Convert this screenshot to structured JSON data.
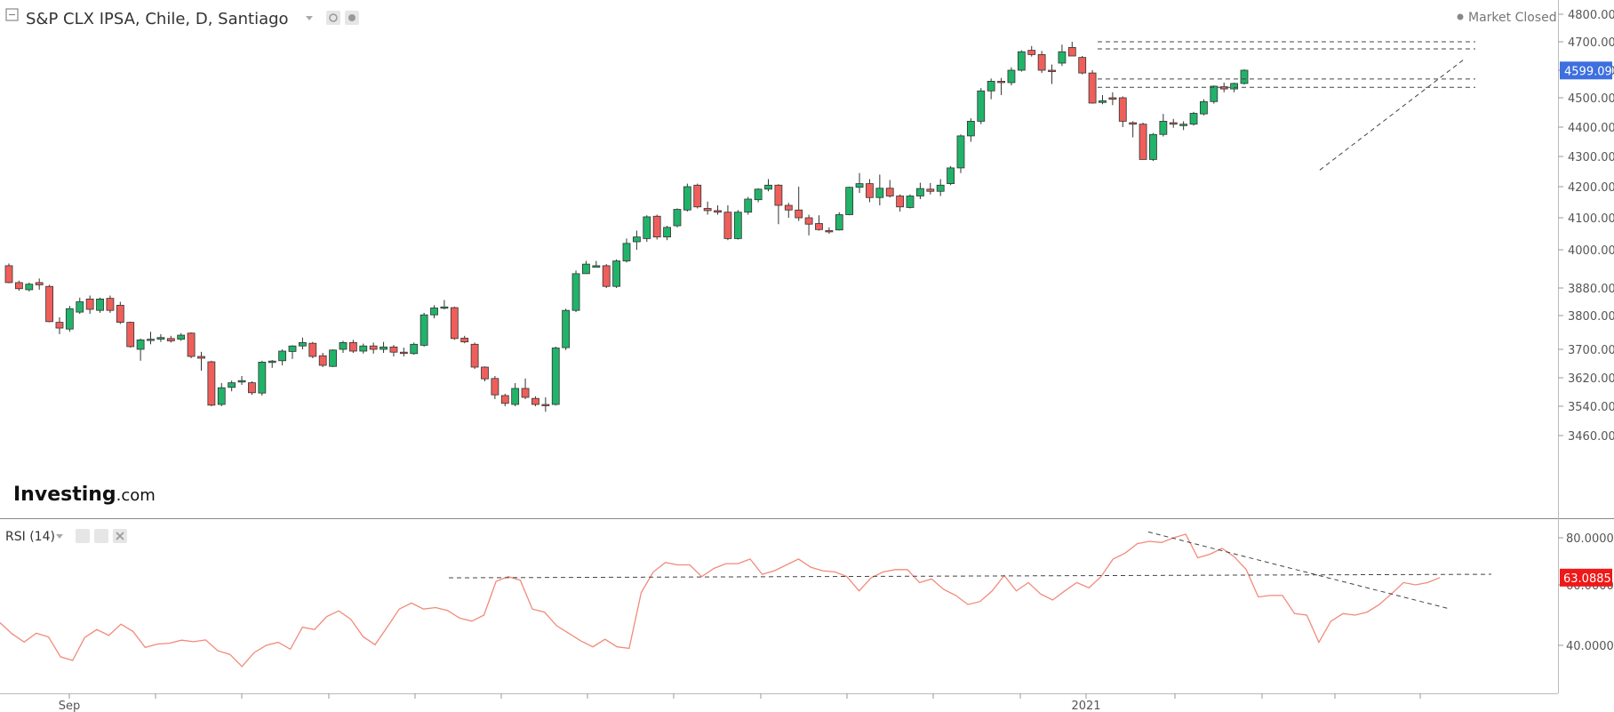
{
  "header": {
    "title": "S&P CLX IPSA, Chile, D, Santiago",
    "status": "Market Closed"
  },
  "logo": {
    "bold": "Investing",
    "thin": ".com"
  },
  "rsi_panel": {
    "title": "RSI (14)"
  },
  "colors": {
    "up": "#21b36a",
    "down": "#ee5f5b",
    "rsi_line": "#f28a7b",
    "last_price_badge": "#3d6fe0",
    "rsi_badge": "#f01818"
  },
  "chart_data": [
    {
      "type": "candlestick",
      "title": "S&P CLX IPSA, Chile, D, Santiago",
      "y_axis_ticks": [
        "4800.00",
        "4700.00",
        "4600.00",
        "4500.00",
        "4400.00",
        "4300.00",
        "4200.00",
        "4100.00",
        "4000.00",
        "3880.00",
        "3800.00",
        "3700.00",
        "3620.00",
        "3540.00",
        "3460.00"
      ],
      "y_axis_tick_values": [
        4800,
        4700,
        4600,
        4500,
        4400,
        4300,
        4200,
        4100,
        4000,
        3880,
        3800,
        3700,
        3620,
        3540,
        3460
      ],
      "x_axis_labels": [
        "Sep",
        "2021"
      ],
      "last_price": "4599.09",
      "ohlc": [
        [
          3950,
          3957,
          3895,
          3897
        ],
        [
          3897,
          3903,
          3872,
          3878
        ],
        [
          3875,
          3897,
          3870,
          3892
        ],
        [
          3897,
          3910,
          3875,
          3890
        ],
        [
          3885,
          3890,
          3780,
          3782
        ],
        [
          3780,
          3795,
          3745,
          3763
        ],
        [
          3760,
          3828,
          3752,
          3820
        ],
        [
          3810,
          3852,
          3805,
          3840
        ],
        [
          3848,
          3858,
          3805,
          3818
        ],
        [
          3815,
          3852,
          3808,
          3848
        ],
        [
          3850,
          3858,
          3808,
          3815
        ],
        [
          3830,
          3840,
          3775,
          3780
        ],
        [
          3780,
          3782,
          3705,
          3708
        ],
        [
          3700,
          3732,
          3668,
          3728
        ],
        [
          3727,
          3752,
          3715,
          3730
        ],
        [
          3730,
          3745,
          3722,
          3735
        ],
        [
          3732,
          3740,
          3720,
          3725
        ],
        [
          3730,
          3748,
          3725,
          3742
        ],
        [
          3748,
          3750,
          3675,
          3680
        ],
        [
          3680,
          3693,
          3640,
          3675
        ],
        [
          3665,
          3668,
          3540,
          3543
        ],
        [
          3545,
          3605,
          3540,
          3592
        ],
        [
          3593,
          3612,
          3582,
          3606
        ],
        [
          3608,
          3625,
          3600,
          3612
        ],
        [
          3606,
          3610,
          3572,
          3578
        ],
        [
          3577,
          3668,
          3570,
          3664
        ],
        [
          3663,
          3670,
          3648,
          3667
        ],
        [
          3668,
          3700,
          3655,
          3695
        ],
        [
          3694,
          3712,
          3673,
          3710
        ],
        [
          3710,
          3735,
          3700,
          3720
        ],
        [
          3718,
          3722,
          3675,
          3680
        ],
        [
          3682,
          3690,
          3650,
          3655
        ],
        [
          3652,
          3700,
          3650,
          3698
        ],
        [
          3700,
          3725,
          3690,
          3720
        ],
        [
          3720,
          3728,
          3690,
          3695
        ],
        [
          3695,
          3717,
          3688,
          3710
        ],
        [
          3710,
          3720,
          3688,
          3700
        ],
        [
          3700,
          3722,
          3690,
          3707
        ],
        [
          3707,
          3713,
          3680,
          3692
        ],
        [
          3692,
          3705,
          3680,
          3690
        ],
        [
          3688,
          3720,
          3685,
          3715
        ],
        [
          3712,
          3808,
          3708,
          3802
        ],
        [
          3802,
          3830,
          3792,
          3822
        ],
        [
          3822,
          3845,
          3818,
          3825
        ],
        [
          3823,
          3826,
          3728,
          3732
        ],
        [
          3733,
          3740,
          3718,
          3722
        ],
        [
          3715,
          3720,
          3645,
          3650
        ],
        [
          3650,
          3652,
          3610,
          3617
        ],
        [
          3618,
          3625,
          3560,
          3572
        ],
        [
          3570,
          3575,
          3540,
          3548
        ],
        [
          3545,
          3605,
          3540,
          3590
        ],
        [
          3590,
          3618,
          3560,
          3565
        ],
        [
          3562,
          3568,
          3540,
          3545
        ],
        [
          3545,
          3565,
          3525,
          3543
        ],
        [
          3545,
          3708,
          3542,
          3704
        ],
        [
          3705,
          3820,
          3698,
          3815
        ],
        [
          3815,
          3935,
          3810,
          3925
        ],
        [
          3925,
          3965,
          3930,
          3955
        ],
        [
          3945,
          3965,
          3945,
          3950
        ],
        [
          3950,
          3955,
          3880,
          3885
        ],
        [
          3885,
          3970,
          3880,
          3965
        ],
        [
          3965,
          4035,
          3960,
          4020
        ],
        [
          4025,
          4060,
          4000,
          4040
        ],
        [
          4035,
          4108,
          4025,
          4103
        ],
        [
          4105,
          4110,
          4032,
          4040
        ],
        [
          4040,
          4075,
          4030,
          4070
        ],
        [
          4075,
          4130,
          4070,
          4127
        ],
        [
          4125,
          4210,
          4120,
          4200
        ],
        [
          4205,
          4210,
          4130,
          4135
        ],
        [
          4130,
          4152,
          4110,
          4123
        ],
        [
          4123,
          4140,
          4110,
          4118
        ],
        [
          4118,
          4140,
          4030,
          4035
        ],
        [
          4035,
          4125,
          4032,
          4118
        ],
        [
          4118,
          4167,
          4110,
          4160
        ],
        [
          4158,
          4195,
          4150,
          4192
        ],
        [
          4192,
          4225,
          4185,
          4205
        ],
        [
          4205,
          4208,
          4080,
          4140
        ],
        [
          4140,
          4148,
          4100,
          4125
        ],
        [
          4125,
          4200,
          4090,
          4100
        ],
        [
          4100,
          4110,
          4045,
          4080
        ],
        [
          4082,
          4108,
          4060,
          4063
        ],
        [
          4060,
          4070,
          4050,
          4058
        ],
        [
          4062,
          4118,
          4060,
          4110
        ],
        [
          4110,
          4200,
          4108,
          4198
        ],
        [
          4198,
          4245,
          4180,
          4210
        ],
        [
          4210,
          4225,
          4150,
          4165
        ],
        [
          4165,
          4240,
          4140,
          4195
        ],
        [
          4195,
          4222,
          4165,
          4170
        ],
        [
          4170,
          4175,
          4120,
          4135
        ],
        [
          4133,
          4175,
          4130,
          4170
        ],
        [
          4170,
          4213,
          4160,
          4194
        ],
        [
          4192,
          4212,
          4175,
          4185
        ],
        [
          4185,
          4225,
          4170,
          4205
        ],
        [
          4210,
          4268,
          4205,
          4262
        ],
        [
          4262,
          4375,
          4245,
          4370
        ],
        [
          4370,
          4430,
          4350,
          4420
        ],
        [
          4420,
          4535,
          4410,
          4525
        ],
        [
          4525,
          4570,
          4495,
          4560
        ],
        [
          4560,
          4572,
          4510,
          4555
        ],
        [
          4555,
          4610,
          4545,
          4600
        ],
        [
          4600,
          4670,
          4595,
          4665
        ],
        [
          4670,
          4685,
          4648,
          4655
        ],
        [
          4655,
          4668,
          4590,
          4600
        ],
        [
          4600,
          4620,
          4550,
          4595
        ],
        [
          4625,
          4690,
          4615,
          4665
        ],
        [
          4680,
          4700,
          4650,
          4650
        ],
        [
          4645,
          4650,
          4585,
          4590
        ],
        [
          4590,
          4600,
          4480,
          4482
        ],
        [
          4484,
          4510,
          4478,
          4490
        ],
        [
          4500,
          4520,
          4475,
          4495
        ],
        [
          4500,
          4505,
          4400,
          4420
        ],
        [
          4415,
          4420,
          4365,
          4410
        ],
        [
          4410,
          4415,
          4290,
          4290
        ],
        [
          4290,
          4380,
          4285,
          4375
        ],
        [
          4375,
          4445,
          4368,
          4420
        ],
        [
          4415,
          4428,
          4398,
          4410
        ],
        [
          4405,
          4420,
          4390,
          4410
        ],
        [
          4410,
          4452,
          4405,
          4447
        ],
        [
          4445,
          4495,
          4440,
          4487
        ],
        [
          4487,
          4545,
          4480,
          4542
        ],
        [
          4540,
          4555,
          4520,
          4532
        ],
        [
          4532,
          4555,
          4520,
          4552
        ],
        [
          4552,
          4603,
          4548,
          4600
        ]
      ],
      "annotations": {
        "horizontal_levels": [
          4700,
          4675,
          4568,
          4538
        ],
        "trend_line": {
          "from": [
            4255,
            "low"
          ],
          "to": [
            4640,
            "high"
          ]
        }
      }
    },
    {
      "type": "line",
      "title": "RSI (14)",
      "y_axis_ticks": [
        "80.0000",
        "60.0000",
        "40.0000"
      ],
      "y_axis_tick_values": [
        80,
        60,
        40
      ],
      "last_value": "63.0885",
      "values": [
        47.5,
        43.8,
        41.1,
        44.0,
        42.8,
        36.2,
        35.0,
        42.6,
        45.2,
        43.3,
        47.0,
        44.6,
        39.3,
        40.4,
        40.7,
        41.7,
        41.2,
        41.8,
        38.2,
        37.0,
        33.0,
        37.6,
        40.0,
        41.0,
        38.7,
        46.0,
        45.2,
        49.5,
        51.4,
        48.6,
        42.9,
        40.2,
        46.0,
        52.0,
        54.0,
        52.0,
        52.5,
        51.5,
        49.0,
        48.0,
        50.0,
        61.5,
        63.5,
        62.0,
        52.0,
        51.0,
        46.5,
        44.0,
        41.5,
        39.5,
        42.0,
        39.5,
        39.0,
        57.5,
        65.5,
        69.5,
        68.5,
        68.5,
        63.5,
        67.0,
        69.0,
        69.0,
        71.0,
        64.5,
        66.0,
        68.5,
        71.0,
        67.5,
        66.0,
        65.5,
        63.5,
        58.0,
        63.0,
        65.5,
        66.5,
        66.5,
        61.0,
        62.5,
        58.5,
        56.5,
        53.5,
        54.5,
        58.0,
        64.0,
        58.0,
        61.0,
        57.0,
        55.0,
        58.0,
        61.0,
        59.0,
        63.5,
        71.0,
        73.5,
        77.5,
        78.5,
        78.0,
        80.0,
        81.5,
        71.5,
        73.0,
        75.5,
        72.0,
        66.5,
        56.0,
        56.5,
        56.5,
        50.5,
        50.0,
        41.0,
        48.0,
        50.5,
        50.0,
        51.0,
        53.5,
        57.0,
        61.0,
        60.0,
        61.0,
        63.1
      ],
      "annotations": {
        "horizontal_level": 63.0,
        "trend_line": {
          "from": [
            82.5,
            "start"
          ],
          "to": [
            52.0,
            "end"
          ]
        }
      }
    }
  ]
}
